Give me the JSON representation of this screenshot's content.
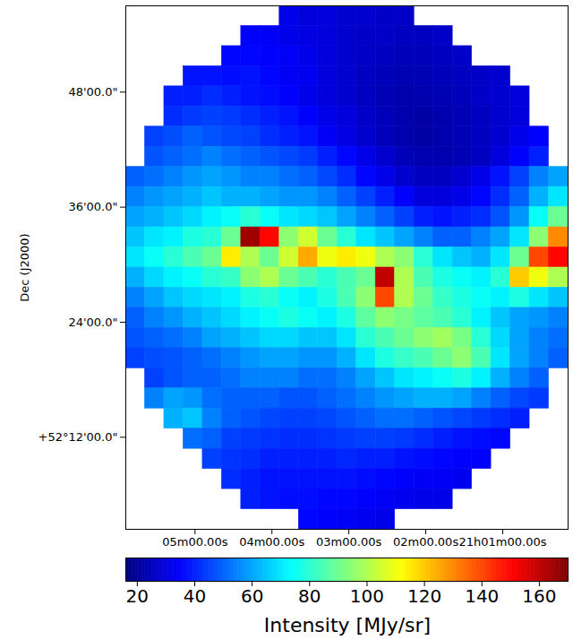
{
  "chart_data": {
    "type": "heatmap",
    "ylabel": "Dec (J2000)",
    "xlim": [
      5.9,
      0.15
    ],
    "ylim": [
      52.04,
      52.95
    ],
    "xticks": [
      {
        "value": 5,
        "label": "05m00.00s"
      },
      {
        "value": 4,
        "label": "04m00.00s"
      },
      {
        "value": 3,
        "label": "03m00.00s"
      },
      {
        "value": 2,
        "label": "02m00.00s"
      },
      {
        "value": 1,
        "label": "21h01m00.00s"
      }
    ],
    "yticks": [
      {
        "value": 52.8,
        "label": "48'00.0\""
      },
      {
        "value": 52.6,
        "label": "36'00.0\""
      },
      {
        "value": 52.4,
        "label": "24'00.0\""
      },
      {
        "value": 52.2,
        "label": "+52°12'00.0\""
      }
    ],
    "color": "jet",
    "x_edges": [
      5.9,
      5.65,
      5.4,
      5.15,
      4.9,
      4.65,
      4.4,
      4.15,
      3.9,
      3.65,
      3.4,
      3.15,
      2.9,
      2.65,
      2.4,
      2.15,
      1.9,
      1.65,
      1.4,
      1.15,
      0.9,
      0.65,
      0.4,
      0.15
    ],
    "y_edges": [
      52.95,
      52.915,
      52.88,
      52.845,
      52.81,
      52.775,
      52.74,
      52.705,
      52.67,
      52.635,
      52.6,
      52.565,
      52.53,
      52.495,
      52.46,
      52.425,
      52.39,
      52.355,
      52.32,
      52.285,
      52.25,
      52.215,
      52.18,
      52.145,
      52.11,
      52.075,
      52.04
    ],
    "cells": [
      [
        null,
        null,
        null,
        null,
        null,
        null,
        null,
        null,
        32,
        30,
        30,
        28,
        28,
        27,
        27,
        null,
        null,
        null,
        null,
        null,
        null,
        null,
        null
      ],
      [
        null,
        null,
        null,
        null,
        null,
        null,
        35,
        34,
        32,
        31,
        30,
        28,
        27,
        27,
        26,
        26,
        27,
        null,
        null,
        null,
        null,
        null,
        null
      ],
      [
        null,
        null,
        null,
        null,
        null,
        36,
        36,
        35,
        34,
        32,
        30,
        28,
        27,
        26,
        25,
        25,
        26,
        27,
        null,
        null,
        null,
        null,
        null
      ],
      [
        null,
        null,
        null,
        38,
        38,
        37,
        38,
        36,
        34,
        33,
        30,
        28,
        26,
        25,
        24,
        24,
        25,
        26,
        27,
        28,
        null,
        null,
        null
      ],
      [
        null,
        null,
        40,
        40,
        42,
        40,
        38,
        37,
        35,
        32,
        30,
        28,
        26,
        24,
        23,
        23,
        24,
        25,
        27,
        28,
        30,
        null,
        null
      ],
      [
        null,
        null,
        42,
        44,
        45,
        44,
        42,
        40,
        38,
        35,
        32,
        30,
        27,
        25,
        23,
        22,
        23,
        24,
        26,
        28,
        30,
        null,
        null
      ],
      [
        null,
        45,
        47,
        50,
        48,
        46,
        45,
        42,
        40,
        38,
        34,
        31,
        28,
        25,
        23,
        22,
        23,
        24,
        26,
        28,
        32,
        35,
        null
      ],
      [
        null,
        48,
        50,
        52,
        55,
        52,
        50,
        48,
        46,
        44,
        40,
        36,
        32,
        28,
        25,
        23,
        23,
        24,
        26,
        30,
        35,
        40,
        null
      ],
      [
        50,
        52,
        55,
        58,
        60,
        58,
        55,
        55,
        52,
        50,
        46,
        42,
        36,
        32,
        28,
        26,
        26,
        28,
        32,
        38,
        45,
        55,
        60
      ],
      [
        55,
        58,
        60,
        62,
        65,
        62,
        62,
        60,
        58,
        58,
        55,
        50,
        45,
        40,
        35,
        30,
        30,
        32,
        36,
        42,
        50,
        62,
        70
      ],
      [
        60,
        62,
        65,
        68,
        72,
        75,
        80,
        75,
        70,
        68,
        65,
        60,
        55,
        50,
        45,
        40,
        38,
        40,
        42,
        48,
        58,
        75,
        90
      ],
      [
        65,
        70,
        72,
        78,
        80,
        90,
        165,
        150,
        95,
        105,
        90,
        80,
        70,
        65,
        60,
        55,
        50,
        50,
        55,
        60,
        70,
        95,
        130
      ],
      [
        70,
        75,
        80,
        85,
        90,
        115,
        100,
        90,
        105,
        125,
        110,
        115,
        110,
        100,
        95,
        80,
        70,
        65,
        62,
        70,
        90,
        140,
        150
      ],
      [
        62,
        68,
        72,
        75,
        80,
        82,
        95,
        100,
        90,
        85,
        80,
        85,
        90,
        160,
        100,
        85,
        78,
        75,
        72,
        80,
        120,
        110,
        100
      ],
      [
        55,
        60,
        65,
        68,
        70,
        72,
        78,
        80,
        75,
        72,
        78,
        85,
        95,
        140,
        100,
        90,
        82,
        78,
        75,
        72,
        78,
        70,
        65
      ],
      [
        50,
        55,
        58,
        62,
        65,
        68,
        72,
        75,
        78,
        75,
        72,
        78,
        88,
        95,
        92,
        88,
        85,
        80,
        72,
        65,
        60,
        58,
        55
      ],
      [
        48,
        50,
        52,
        55,
        60,
        62,
        65,
        68,
        68,
        65,
        65,
        70,
        80,
        85,
        90,
        95,
        98,
        92,
        80,
        68,
        60,
        55,
        52
      ],
      [
        45,
        47,
        48,
        50,
        52,
        55,
        58,
        60,
        60,
        58,
        58,
        62,
        70,
        78,
        82,
        85,
        90,
        95,
        85,
        70,
        60,
        55,
        50
      ],
      [
        null,
        45,
        48,
        50,
        50,
        52,
        55,
        55,
        55,
        52,
        52,
        55,
        60,
        65,
        70,
        72,
        75,
        78,
        72,
        62,
        55,
        50,
        null
      ],
      [
        null,
        55,
        60,
        58,
        52,
        50,
        50,
        50,
        48,
        48,
        50,
        52,
        55,
        58,
        60,
        62,
        62,
        60,
        55,
        50,
        46,
        44,
        null
      ],
      [
        null,
        null,
        62,
        65,
        55,
        50,
        48,
        46,
        45,
        45,
        46,
        48,
        50,
        52,
        52,
        50,
        48,
        46,
        44,
        42,
        40,
        null,
        null
      ],
      [
        null,
        null,
        null,
        52,
        50,
        45,
        44,
        43,
        42,
        42,
        43,
        44,
        45,
        45,
        44,
        42,
        40,
        38,
        37,
        36,
        null,
        null,
        null
      ],
      [
        null,
        null,
        null,
        null,
        45,
        43,
        42,
        40,
        40,
        40,
        40,
        41,
        40,
        40,
        38,
        37,
        36,
        35,
        35,
        null,
        null,
        null,
        null
      ],
      [
        null,
        null,
        null,
        null,
        null,
        42,
        40,
        38,
        38,
        38,
        38,
        38,
        37,
        36,
        35,
        34,
        34,
        33,
        null,
        null,
        null,
        null,
        null
      ],
      [
        null,
        null,
        null,
        null,
        null,
        null,
        40,
        38,
        37,
        37,
        36,
        36,
        35,
        34,
        33,
        32,
        32,
        null,
        null,
        null,
        null,
        null,
        null
      ],
      [
        null,
        null,
        null,
        null,
        null,
        null,
        null,
        null,
        null,
        36,
        35,
        34,
        33,
        32,
        null,
        null,
        null,
        null,
        null,
        null,
        null,
        null,
        null
      ]
    ],
    "colorbar": {
      "lim": [
        16,
        170
      ],
      "ticks": [
        20,
        40,
        60,
        80,
        100,
        120,
        140,
        160
      ],
      "label": "Intensity [MJy/sr]"
    }
  }
}
